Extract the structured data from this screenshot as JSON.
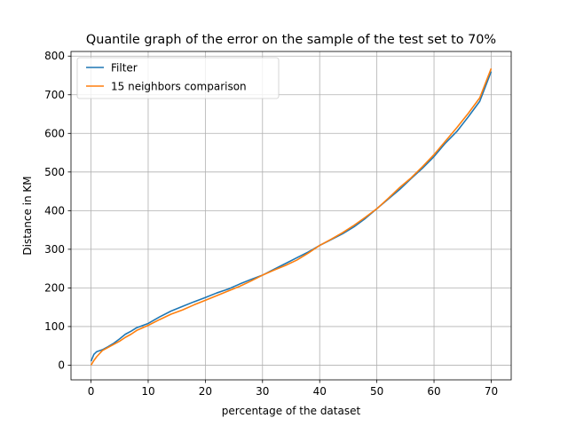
{
  "chart_data": {
    "type": "line",
    "title": "Quantile graph of the error on the sample of the test set to 70%",
    "xlabel": "percentage of the dataset",
    "ylabel": "Distance in KM",
    "xlim": [
      -3.5,
      73.5
    ],
    "ylim": [
      -38,
      812
    ],
    "xticks": [
      0,
      10,
      20,
      30,
      40,
      50,
      60,
      70
    ],
    "yticks": [
      0,
      100,
      200,
      300,
      400,
      500,
      600,
      700,
      800
    ],
    "grid": true,
    "legend_position": "upper-left",
    "series": [
      {
        "name": "Filter",
        "color": "#1f77b4",
        "x": [
          0,
          0.5,
          1,
          2,
          3,
          4,
          5,
          6,
          7,
          8,
          10,
          12,
          14,
          16,
          18,
          20,
          22,
          24,
          26,
          28,
          30,
          32,
          34,
          36,
          38,
          40,
          42,
          44,
          46,
          48,
          50,
          52,
          54,
          56,
          58,
          60,
          62,
          64,
          66,
          68,
          70
        ],
        "y": [
          10,
          28,
          35,
          40,
          48,
          57,
          68,
          80,
          88,
          97,
          108,
          125,
          140,
          152,
          164,
          175,
          187,
          197,
          210,
          222,
          233,
          248,
          263,
          278,
          293,
          310,
          325,
          340,
          358,
          380,
          405,
          430,
          455,
          483,
          510,
          540,
          575,
          605,
          643,
          683,
          760
        ]
      },
      {
        "name": "15 neighbors comparison",
        "color": "#ff7f0e",
        "x": [
          0,
          0.5,
          1,
          2,
          3,
          4,
          5,
          6,
          7,
          8,
          10,
          12,
          14,
          16,
          18,
          20,
          22,
          24,
          26,
          28,
          30,
          32,
          34,
          36,
          38,
          40,
          42,
          44,
          46,
          48,
          50,
          52,
          54,
          56,
          58,
          60,
          62,
          64,
          66,
          68,
          70
        ],
        "y": [
          0,
          12,
          22,
          38,
          46,
          54,
          62,
          72,
          80,
          90,
          103,
          118,
          132,
          143,
          156,
          168,
          180,
          192,
          204,
          218,
          233,
          246,
          258,
          272,
          290,
          310,
          326,
          343,
          362,
          383,
          405,
          432,
          460,
          485,
          514,
          545,
          580,
          615,
          652,
          692,
          768
        ]
      }
    ]
  }
}
